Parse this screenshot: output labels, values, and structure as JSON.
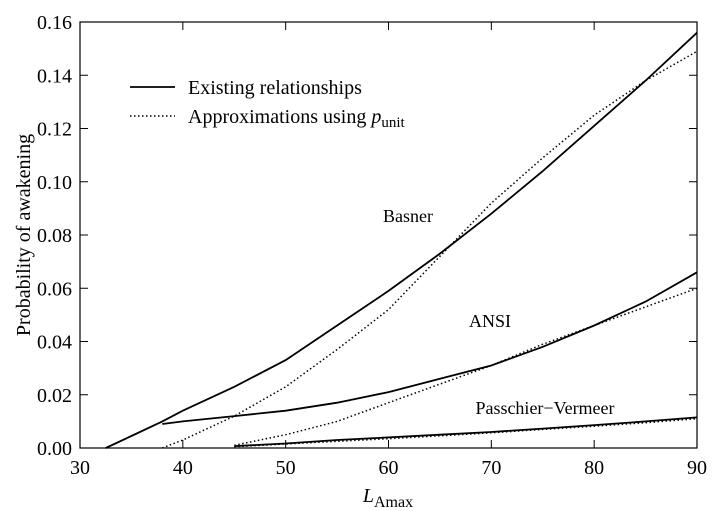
{
  "chart_data": {
    "type": "line",
    "xlabel": {
      "symbol": "L",
      "subscript": "Amax"
    },
    "ylabel": "Probability of awakening",
    "legend": {
      "solid": "Existing relationships",
      "dotted": {
        "text": "Approximations using",
        "symbol": "p",
        "subscript": "unit"
      }
    },
    "legend_position": "upper left",
    "x": [
      32.5,
      35,
      38,
      40,
      45,
      50,
      55,
      60,
      65,
      70,
      75,
      80,
      85,
      90
    ],
    "series": [
      {
        "name": "Basner",
        "color": "#000000",
        "values": [
          0,
          0.0045,
          0.01,
          0.014,
          0.023,
          0.033,
          0.046,
          0.059,
          0.073,
          0.088,
          0.104,
          0.121,
          0.138,
          0.156
        ],
        "approx_values": [
          null,
          null,
          0,
          0.003,
          0.012,
          0.023,
          0.037,
          0.052,
          0.072,
          0.092,
          0.109,
          0.125,
          0.138,
          0.149
        ]
      },
      {
        "name": "ANSI",
        "color": "#000000",
        "values": [
          null,
          null,
          0.009,
          0.01,
          0.012,
          0.014,
          0.017,
          0.021,
          0.026,
          0.031,
          0.038,
          0.046,
          0.055,
          0.066
        ],
        "approx_values": [
          null,
          null,
          null,
          null,
          0.001,
          0.005,
          0.01,
          0.017,
          0.024,
          0.031,
          0.039,
          0.046,
          0.053,
          0.06
        ]
      },
      {
        "name": "Passchier−Vermeer",
        "color": "#000000",
        "values": [
          null,
          null,
          null,
          null,
          0.0007,
          0.0017,
          0.003,
          0.004,
          0.005,
          0.006,
          0.0073,
          0.0086,
          0.01,
          0.0115
        ],
        "approx_values": [
          null,
          null,
          null,
          null,
          0.0005,
          0.0015,
          0.0025,
          0.0035,
          0.0046,
          0.0057,
          0.007,
          0.0082,
          0.0095,
          0.011
        ]
      }
    ],
    "xlim": [
      30,
      90
    ],
    "xticks": [
      30,
      40,
      50,
      60,
      70,
      80,
      90
    ],
    "ylim": [
      0,
      0.16
    ],
    "yticks": [
      {
        "value": 0,
        "label": "0.00"
      },
      0.02,
      0.04,
      0.06,
      0.08,
      {
        "value": 0.1,
        "label": "0.10"
      },
      0.12,
      0.14,
      {
        "value": 0.16,
        "label": "0.16"
      }
    ]
  }
}
